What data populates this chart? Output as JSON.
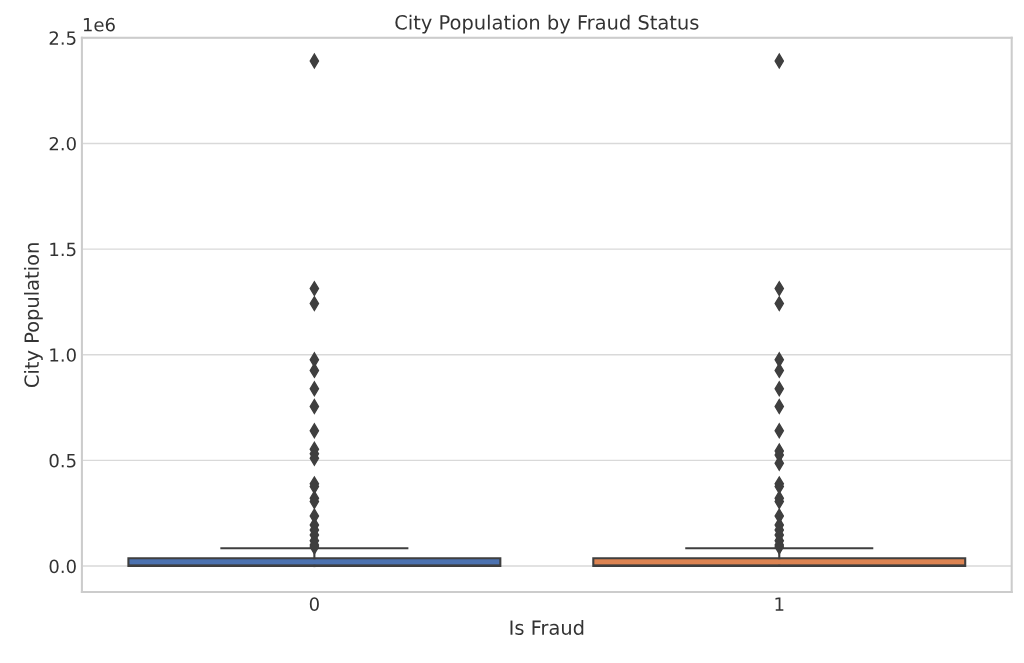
{
  "chart_data": {
    "type": "box",
    "title": "City Population by Fraud Status",
    "xlabel": "Is Fraud",
    "ylabel": "City Population",
    "categories": [
      "0",
      "1"
    ],
    "series": [
      {
        "color": "#4c72b0",
        "boxes": [
          {
            "low": 0.0,
            "q1": 0.001,
            "median": 0.003,
            "q3": 0.037,
            "high": 0.084,
            "outliers": [
              2.39,
              1.313,
              1.242,
              0.976,
              0.926,
              0.839,
              0.755,
              0.64,
              0.553,
              0.531,
              0.51,
              0.389,
              0.376,
              0.321,
              0.305,
              0.237,
              0.194,
              0.171,
              0.147,
              0.12,
              0.1,
              0.09
            ]
          },
          null
        ]
      },
      {
        "color": "#dd8452",
        "boxes": [
          null,
          {
            "low": 0.0,
            "q1": 0.001,
            "median": 0.003,
            "q3": 0.037,
            "high": 0.084,
            "outliers": [
              2.39,
              1.313,
              1.242,
              0.976,
              0.926,
              0.839,
              0.755,
              0.64,
              0.545,
              0.526,
              0.487,
              0.389,
              0.376,
              0.321,
              0.305,
              0.237,
              0.194,
              0.171,
              0.147,
              0.12,
              0.1,
              0.09
            ]
          }
        ]
      }
    ],
    "ylim": [
      -0.123,
      2.5
    ],
    "yticks": [
      {
        "value": 0,
        "label": "0.0"
      },
      0.5,
      {
        "value": 1,
        "label": "1.0"
      },
      1.5,
      {
        "value": 2,
        "label": "2.0"
      },
      2.5
    ],
    "annotations": [
      "1e6"
    ],
    "grid": "y",
    "marker": "diamond"
  }
}
